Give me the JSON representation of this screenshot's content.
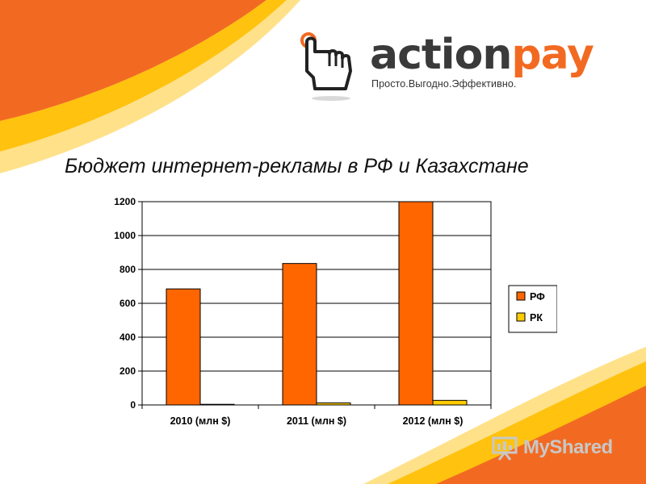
{
  "logo": {
    "word_part1": "action",
    "word_part2": "pay",
    "tagline": "Просто.Выгодно.Эффективно.",
    "icon": "pointing-hand-icon"
  },
  "slide_title": "Бюджет интернет-рекламы в РФ и Казахстане",
  "watermark": {
    "text": "MyShared",
    "icon": "presentation-board-icon"
  },
  "colors": {
    "accent_orange": "#ff6600",
    "accent_yellow": "#ffcc00",
    "wave_orange": "#f26a21",
    "wave_yellow": "#ffc20e"
  },
  "chart_data": {
    "type": "bar",
    "categories": [
      "2010 (млн $)",
      "2011  (млн $)",
      "2012  (млн $)"
    ],
    "series": [
      {
        "name": "РФ",
        "values": [
          685,
          835,
          1200
        ],
        "color": "#ff6600"
      },
      {
        "name": "РК",
        "values": [
          3,
          12,
          27
        ],
        "color": "#ffcc00"
      }
    ],
    "ylim": [
      0,
      1200
    ],
    "yticks": [
      0,
      200,
      400,
      600,
      800,
      1000,
      1200
    ],
    "grid": true,
    "legend": "right"
  }
}
